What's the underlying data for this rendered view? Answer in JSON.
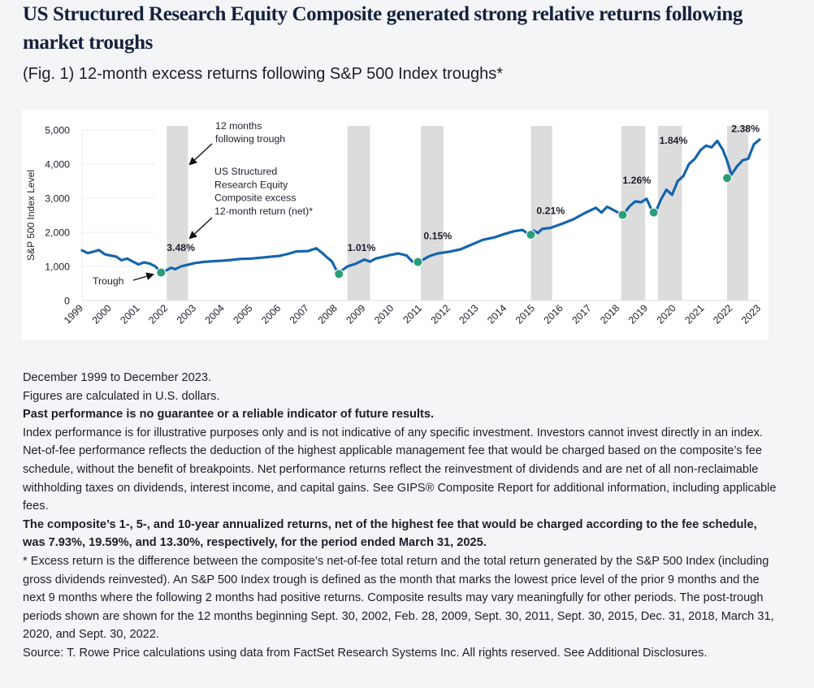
{
  "page": {
    "title": "US Structured Research Equity Composite generated strong relative returns following market troughs",
    "subtitle": "(Fig. 1) 12-month excess returns following S&P 500 Index troughs*"
  },
  "colors": {
    "line": "#1565ae",
    "trough_dot": "#2a9d7b",
    "band": "#dcdcdc",
    "text": "#1e1e2a",
    "title": "#14213d"
  },
  "chart_data": {
    "type": "line",
    "title": "(Fig. 1) 12-month excess returns following S&P 500 Index troughs*",
    "xlabel": "",
    "ylabel": "S&P 500 Index Level",
    "xlim": [
      1999,
      2023
    ],
    "ylim": [
      0,
      5000
    ],
    "grid": true,
    "y_ticks": [
      0,
      1000,
      2000,
      3000,
      4000,
      5000
    ],
    "y_tick_labels": [
      "0",
      "1,000",
      "2,000",
      "3,000",
      "4,000",
      "5,000"
    ],
    "x_ticks": [
      1999,
      2000,
      2001,
      2002,
      2003,
      2004,
      2005,
      2006,
      2007,
      2008,
      2009,
      2010,
      2011,
      2012,
      2013,
      2014,
      2015,
      2016,
      2017,
      2018,
      2019,
      2020,
      2021,
      2022,
      2023
    ],
    "x_tick_labels": [
      "1999",
      "2000",
      "2001",
      "2002",
      "2003",
      "2004",
      "2005",
      "2006",
      "2007",
      "2008",
      "2009",
      "2010",
      "2011",
      "2012",
      "2013",
      "2014",
      "2015",
      "2016",
      "2017",
      "2018",
      "2019",
      "2020",
      "2021",
      "2022",
      "2023"
    ],
    "series": [
      {
        "name": "S&P 500 Index Level",
        "x": [
          1999.0,
          1999.2,
          1999.4,
          1999.6,
          1999.8,
          2000.0,
          2000.2,
          2000.4,
          2000.6,
          2000.8,
          2001.0,
          2001.2,
          2001.4,
          2001.6,
          2001.8,
          2002.0,
          2002.15,
          2002.3,
          2002.5,
          2002.75,
          2003.0,
          2003.3,
          2003.6,
          2004.0,
          2004.3,
          2004.6,
          2005.0,
          2005.5,
          2006.0,
          2006.3,
          2006.6,
          2007.0,
          2007.3,
          2007.5,
          2007.7,
          2007.85,
          2008.0,
          2008.15,
          2008.4,
          2008.7,
          2009.0,
          2009.2,
          2009.4,
          2009.6,
          2009.9,
          2010.2,
          2010.5,
          2010.7,
          2011.0,
          2011.3,
          2011.6,
          2012.0,
          2012.4,
          2012.8,
          2013.2,
          2013.6,
          2014.0,
          2014.3,
          2014.6,
          2014.85,
          2015.0,
          2015.15,
          2015.3,
          2015.6,
          2016.0,
          2016.4,
          2016.8,
          2017.2,
          2017.4,
          2017.6,
          2017.9,
          2018.15,
          2018.4,
          2018.6,
          2018.8,
          2019.0,
          2019.15,
          2019.3,
          2019.5,
          2019.7,
          2019.9,
          2020.1,
          2020.3,
          2020.5,
          2020.7,
          2020.9,
          2021.1,
          2021.3,
          2021.5,
          2021.7,
          2021.85,
          2022.0,
          2022.2,
          2022.4,
          2022.6,
          2022.8,
          2023.0
        ],
        "values": [
          1470,
          1390,
          1430,
          1480,
          1360,
          1320,
          1290,
          1180,
          1230,
          1140,
          1060,
          1120,
          1080,
          1000,
          820,
          890,
          960,
          920,
          1000,
          1050,
          1100,
          1130,
          1150,
          1170,
          1190,
          1220,
          1230,
          1270,
          1310,
          1370,
          1440,
          1450,
          1530,
          1400,
          1250,
          1150,
          900,
          850,
          1000,
          1080,
          1200,
          1140,
          1230,
          1270,
          1330,
          1380,
          1320,
          1140,
          1160,
          1300,
          1380,
          1430,
          1500,
          1640,
          1780,
          1850,
          1960,
          2030,
          2070,
          1930,
          2050,
          1980,
          2100,
          2130,
          2250,
          2380,
          2560,
          2720,
          2580,
          2750,
          2620,
          2500,
          2770,
          2910,
          2880,
          2980,
          2700,
          2560,
          2950,
          3250,
          3100,
          3500,
          3650,
          4000,
          4150,
          4400,
          4540,
          4490,
          4680,
          4420,
          4100,
          3690,
          3930,
          4110,
          4160,
          4580,
          4720
        ]
      }
    ],
    "troughs": [
      {
        "x": 2001.8,
        "value": 820
      },
      {
        "x": 2008.1,
        "value": 780
      },
      {
        "x": 2010.9,
        "value": 1130
      },
      {
        "x": 2014.9,
        "value": 1930
      },
      {
        "x": 2018.15,
        "value": 2510
      },
      {
        "x": 2019.25,
        "value": 2580
      },
      {
        "x": 2021.85,
        "value": 3590
      }
    ],
    "post_trough_bands": [
      {
        "start": 2002.0,
        "end": 2002.75,
        "label": "3.48%"
      },
      {
        "start": 2008.4,
        "end": 2009.2,
        "label": "1.01%"
      },
      {
        "start": 2011.0,
        "end": 2011.8,
        "label": "0.15%"
      },
      {
        "start": 2014.9,
        "end": 2015.65,
        "label": "0.21%"
      },
      {
        "start": 2018.1,
        "end": 2018.95,
        "label": "1.26%"
      },
      {
        "start": 2019.4,
        "end": 2020.25,
        "label": "1.84%"
      },
      {
        "start": 2021.85,
        "end": 2022.6,
        "label": "2.38%"
      }
    ],
    "band_labels": [
      {
        "text": "3.48%",
        "x": 2002.5,
        "value": 1450
      },
      {
        "text": "1.01%",
        "x": 2008.9,
        "value": 1450
      },
      {
        "text": "0.15%",
        "x": 2011.6,
        "value": 1800
      },
      {
        "text": "0.21%",
        "x": 2015.6,
        "value": 2530
      },
      {
        "text": "1.26%",
        "x": 2018.65,
        "value": 3430
      },
      {
        "text": "1.84%",
        "x": 2019.95,
        "value": 4600
      },
      {
        "text": "2.38%",
        "x": 2022.5,
        "value": 4940
      }
    ],
    "annotations": {
      "band_note": "12 months\nfollowing trough",
      "return_note": "US Structured\nResearch Equity\nComposite excess\n12-month return (net)*",
      "trough_note": "Trough"
    },
    "legend": "none"
  },
  "notes": {
    "period": "December 1999 to December 2023.",
    "currency": "Figures are calculated in U.S. dollars.",
    "past_performance": "Past performance is no guarantee or a reliable indicator of future results.",
    "index_performance": "Index performance is for illustrative purposes only and is not indicative of any specific investment. Investors cannot invest directly in an index.",
    "net_of_fee": "Net-of-fee performance reflects the deduction of the highest applicable management fee that would be charged based on the composite’s fee schedule, without the benefit of breakpoints. Net performance returns reflect the reinvestment of dividends and are net of all non-reclaimable withholding taxes on dividends, interest income, and capital gains. See GIPS® Composite Report for additional information, including applicable fees.",
    "annualized": "The composite’s 1-, 5-, and 10-year annualized returns, net of the highest fee that would be charged according to the fee schedule, was 7.93%, 19.59%, and 13.30%, respectively, for the period ended March 31, 2025.",
    "excess_return": "* Excess return is the difference between the composite’s net-of-fee total return and the total return generated by the S&P 500 Index (including gross dividends reinvested). An S&P 500 Index trough is defined as the month that marks the lowest price level of the prior 9 months and the next 9 months where the following 2 months had positive returns. Composite results may vary meaningfully for other periods. The post-trough periods shown are shown for the 12 months beginning Sept. 30, 2002, Feb. 28, 2009, Sept. 30, 2011, Sept. 30, 2015, Dec. 31, 2018, March 31, 2020, and Sept. 30, 2022.",
    "source": "Source: T. Rowe Price calculations using data from FactSet Research Systems Inc. All rights reserved. See Additional Disclosures."
  }
}
